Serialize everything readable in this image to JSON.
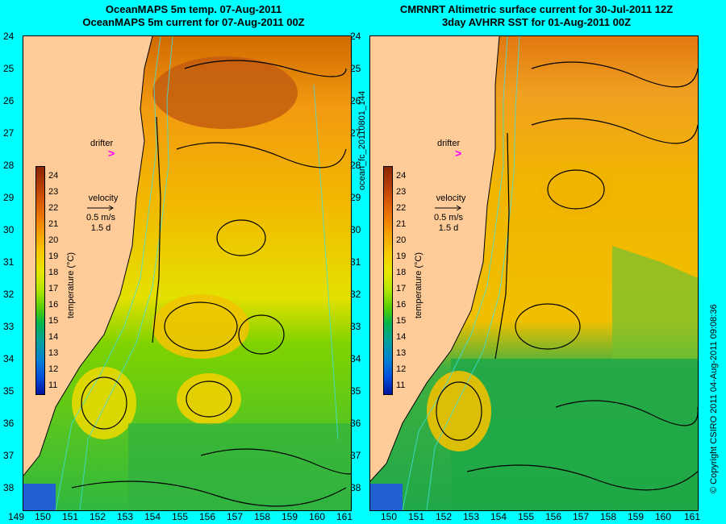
{
  "left_panel": {
    "title_line1": "OceanMAPS 5m temp. 07-Aug-2011",
    "title_line2": "OceanMAPS 5m current for 07-Aug-2011 00Z"
  },
  "right_panel": {
    "title_line1": "CMRNRT Altimetric surface current for 30-Jul-2011 12Z",
    "title_line2": "3day AVHRR SST for 01-Aug-2011 00Z"
  },
  "latitudes": [
    "24",
    "25",
    "26",
    "27",
    "28",
    "29",
    "30",
    "31",
    "32",
    "33",
    "34",
    "35",
    "36",
    "37",
    "38"
  ],
  "longitudes": [
    "149",
    "150",
    "151",
    "152",
    "153",
    "154",
    "155",
    "156",
    "157",
    "158",
    "159",
    "160",
    "161"
  ],
  "colorbar": {
    "title": "temperature (°C)",
    "ticks": [
      "24",
      "23",
      "22",
      "21",
      "20",
      "19",
      "18",
      "17",
      "16",
      "15",
      "14",
      "13",
      "12",
      "11"
    ],
    "colors": [
      "#8b2500",
      "#b23c00",
      "#d85a00",
      "#f07d00",
      "#f9a800",
      "#f5cd00",
      "#e8e600",
      "#b4e600",
      "#5cd000",
      "#00b450",
      "#00a0a0",
      "#0082d2",
      "#0050dc",
      "#0014a0"
    ]
  },
  "drifter_label": "drifter",
  "drifter_symbol": ">",
  "velocity": {
    "label": "velocity",
    "speed": "0.5 m/s",
    "duration": "1.5 d"
  },
  "side_label": "ocean_fc_20110801_144",
  "copyright": "© Copyright CSIRO 2011   04-Aug-2011 09:08:36"
}
